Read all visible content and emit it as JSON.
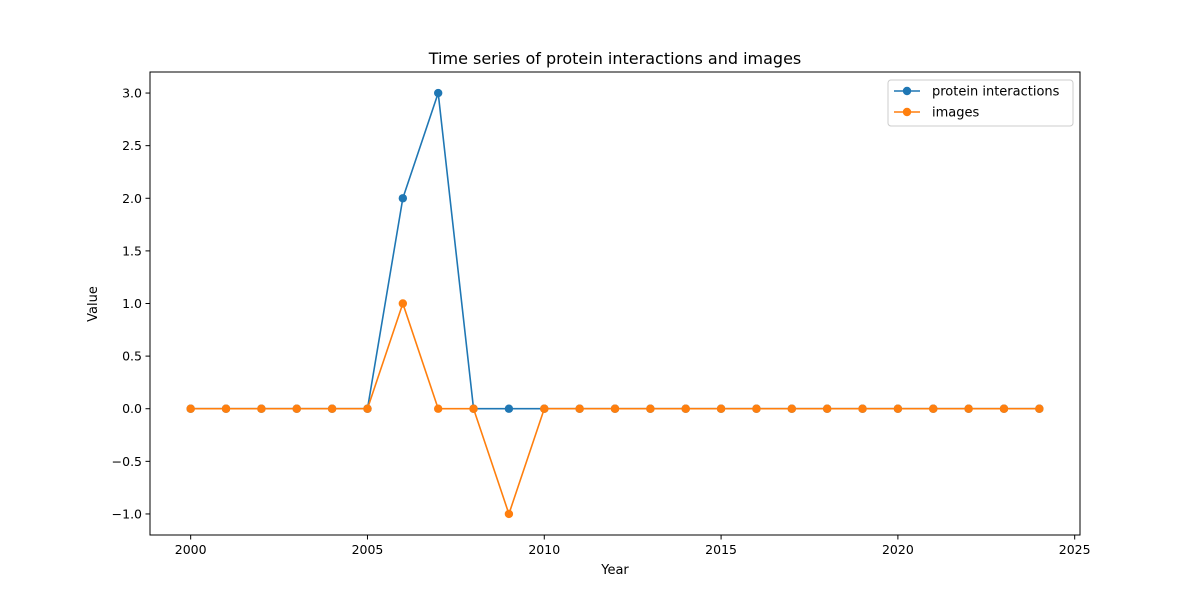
{
  "chart_data": {
    "type": "line",
    "title": "Time series of protein interactions and images",
    "xlabel": "Year",
    "ylabel": "Value",
    "xlim": [
      1998.85,
      2025.15
    ],
    "ylim": [
      -1.2,
      3.2
    ],
    "xticks": [
      2000,
      2005,
      2010,
      2015,
      2020,
      2025
    ],
    "yticks": [
      -1.0,
      -0.5,
      0.0,
      0.5,
      1.0,
      1.5,
      2.0,
      2.5,
      3.0
    ],
    "x": [
      2000,
      2001,
      2002,
      2003,
      2004,
      2005,
      2006,
      2007,
      2008,
      2009,
      2010,
      2011,
      2012,
      2013,
      2014,
      2015,
      2016,
      2017,
      2018,
      2019,
      2020,
      2021,
      2022,
      2023,
      2024
    ],
    "series": [
      {
        "name": "protein interactions",
        "color": "#1f77b4",
        "values": [
          0,
          0,
          0,
          0,
          0,
          0,
          2,
          3,
          0,
          0,
          0,
          0,
          0,
          0,
          0,
          0,
          0,
          0,
          0,
          0,
          0,
          0,
          0,
          0,
          0
        ]
      },
      {
        "name": "images",
        "color": "#ff7f0e",
        "values": [
          0,
          0,
          0,
          0,
          0,
          0,
          1,
          0,
          0,
          -1,
          0,
          0,
          0,
          0,
          0,
          0,
          0,
          0,
          0,
          0,
          0,
          0,
          0,
          0,
          0
        ]
      }
    ],
    "grid": false,
    "legend_position": "top-right"
  }
}
